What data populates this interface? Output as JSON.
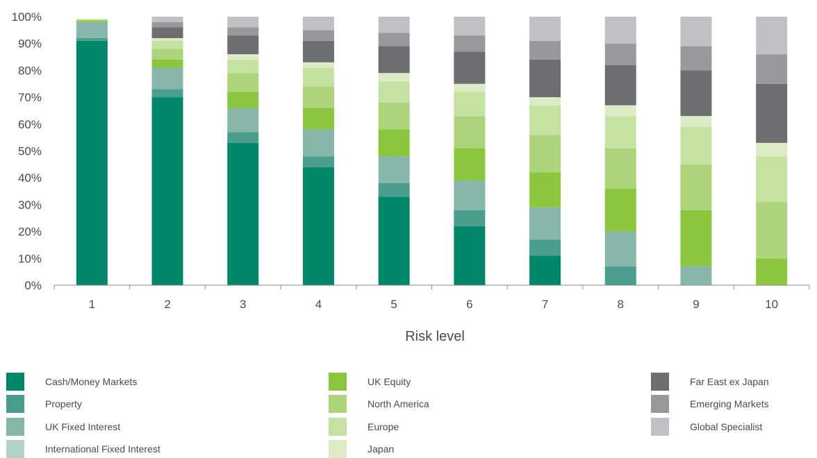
{
  "chart_data": {
    "type": "bar",
    "stacked": true,
    "xlabel": "Risk level",
    "ylabel": "",
    "ylim": [
      0,
      100
    ],
    "yticks": [
      "0%",
      "10%",
      "20%",
      "30%",
      "40%",
      "50%",
      "60%",
      "70%",
      "80%",
      "90%",
      "100%"
    ],
    "categories": [
      "1",
      "2",
      "3",
      "4",
      "5",
      "6",
      "7",
      "8",
      "9",
      "10"
    ],
    "legend_position": "bottom",
    "grid": false,
    "series": [
      {
        "name": "Cash/Money Markets",
        "color": "#00876a",
        "values": [
          91,
          70,
          53,
          44,
          33,
          22,
          11,
          0,
          0,
          0
        ]
      },
      {
        "name": "Property",
        "color": "#4a9e8e",
        "values": [
          1,
          3,
          4,
          4,
          5,
          6,
          6,
          7,
          0,
          0
        ]
      },
      {
        "name": "UK Fixed Interest",
        "color": "#86b7a8",
        "values": [
          6,
          8,
          9,
          10,
          10,
          11,
          12,
          13,
          7,
          0
        ]
      },
      {
        "name": "International Fixed Interest",
        "color": "#b2d3c9",
        "values": [
          0,
          0,
          0,
          0,
          0,
          0,
          0,
          0,
          0,
          0
        ]
      },
      {
        "name": "UK Equity",
        "color": "#8cc63f",
        "values": [
          0.5,
          3,
          6,
          8,
          10,
          12,
          13,
          16,
          21,
          10
        ]
      },
      {
        "name": "North America",
        "color": "#add47a",
        "values": [
          0.5,
          4,
          7,
          8,
          10,
          12,
          14,
          15,
          17,
          21
        ]
      },
      {
        "name": "Europe",
        "color": "#c6e2a2",
        "values": [
          0,
          3,
          5,
          7,
          8,
          9,
          11,
          12,
          14,
          17
        ]
      },
      {
        "name": "Japan",
        "color": "#ddecc6",
        "values": [
          0,
          1,
          2,
          2,
          3,
          3,
          3,
          4,
          4,
          5
        ]
      },
      {
        "name": "Far East ex Japan",
        "color": "#6d6e70",
        "values": [
          0,
          4,
          7,
          8,
          10,
          12,
          14,
          15,
          17,
          22
        ]
      },
      {
        "name": "Emerging Markets",
        "color": "#98999b",
        "values": [
          0,
          2,
          3,
          4,
          5,
          6,
          7,
          8,
          9,
          11
        ]
      },
      {
        "name": "Global Specialist",
        "color": "#c0c1c3",
        "values": [
          0,
          2,
          4,
          5,
          6,
          7,
          9,
          10,
          11,
          14
        ]
      }
    ]
  },
  "legend": {
    "items": [
      {
        "name": "Cash/Money Markets",
        "color": "#00876a"
      },
      {
        "name": "Property",
        "color": "#4a9e8e"
      },
      {
        "name": "UK Fixed Interest",
        "color": "#86b7a8"
      },
      {
        "name": "International Fixed Interest",
        "color": "#b2d3c9"
      },
      {
        "name": "UK Equity",
        "color": "#8cc63f"
      },
      {
        "name": "North America",
        "color": "#add47a"
      },
      {
        "name": "Europe",
        "color": "#c6e2a2"
      },
      {
        "name": "Japan",
        "color": "#ddecc6"
      },
      {
        "name": "Far East ex Japan",
        "color": "#6d6e70"
      },
      {
        "name": "Emerging Markets",
        "color": "#98999b"
      },
      {
        "name": "Global Specialist",
        "color": "#c0c1c3"
      }
    ]
  }
}
